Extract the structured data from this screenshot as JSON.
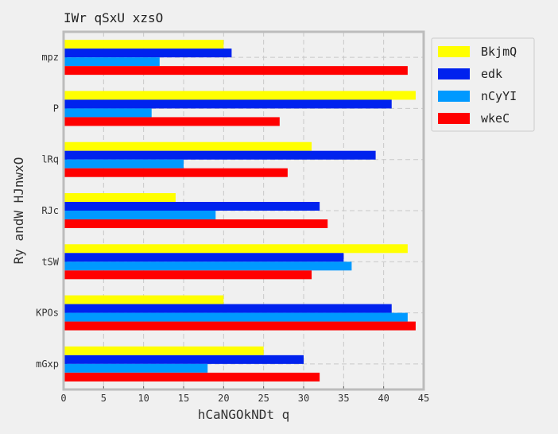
{
  "chart_data": {
    "type": "bar",
    "orientation": "horizontal",
    "title": "IWr qSxU xzsO",
    "xlabel": "hCaNGOkNDt q",
    "ylabel": "Ry andW HJnwxO",
    "xlim": [
      0,
      45
    ],
    "x_ticks": [
      0,
      5,
      10,
      15,
      20,
      25,
      30,
      35,
      40,
      45
    ],
    "categories": [
      "mpz",
      "P",
      "lRq",
      "RJc",
      "tSW",
      "KPOs",
      "mGxp"
    ],
    "series": [
      {
        "name": "BkjmQ",
        "color": "#ffff00",
        "values": [
          20,
          44,
          31,
          14,
          43,
          20,
          25
        ]
      },
      {
        "name": "edk",
        "color": "#0022ee",
        "values": [
          21,
          41,
          39,
          32,
          35,
          41,
          30
        ]
      },
      {
        "name": "nCyYI",
        "color": "#0099ff",
        "values": [
          12,
          11,
          15,
          19,
          36,
          43,
          18
        ]
      },
      {
        "name": "wkeC",
        "color": "#ff0000",
        "values": [
          43,
          27,
          28,
          33,
          31,
          44,
          32
        ]
      }
    ],
    "grid": true,
    "legend_position": "outside-right-top"
  }
}
